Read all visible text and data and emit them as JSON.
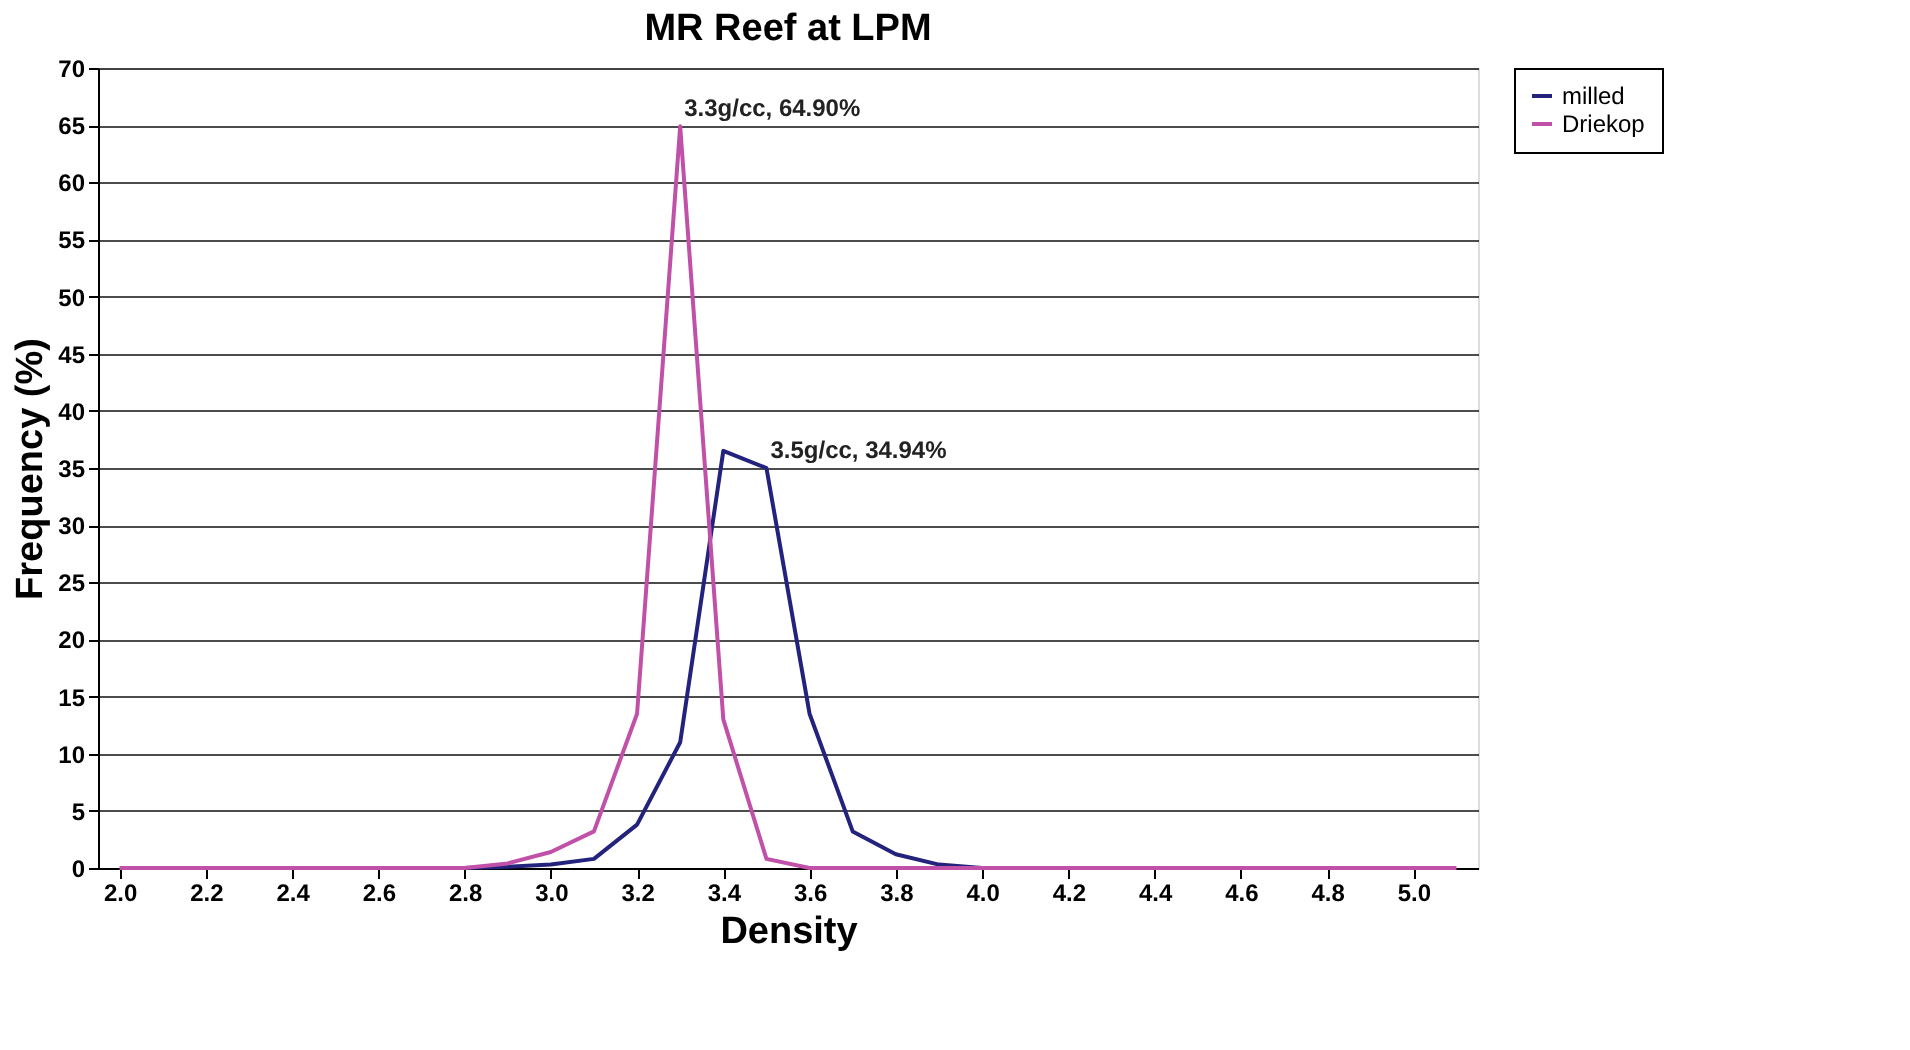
{
  "chart_data": {
    "type": "line",
    "title": "MR Reef at LPM",
    "xlabel": "Density",
    "ylabel": "Frequency (%)",
    "x": [
      2.0,
      2.1,
      2.2,
      2.3,
      2.4,
      2.5,
      2.6,
      2.7,
      2.8,
      2.9,
      3.0,
      3.1,
      3.2,
      3.3,
      3.4,
      3.5,
      3.6,
      3.7,
      3.8,
      3.9,
      4.0,
      4.1,
      4.2,
      4.3,
      4.4,
      4.5,
      4.6,
      4.7,
      4.8,
      4.9,
      5.0,
      5.1
    ],
    "series": [
      {
        "name": "milled",
        "color": "#23237e",
        "values": [
          null,
          null,
          null,
          null,
          null,
          null,
          null,
          null,
          0,
          0.1,
          0.3,
          0.8,
          3.8,
          11,
          36.5,
          35,
          13.5,
          3.2,
          1.2,
          0.3,
          0,
          null,
          null,
          null,
          null,
          null,
          null,
          null,
          null,
          null,
          null,
          null
        ]
      },
      {
        "name": "Driekop",
        "color": "#c050a8",
        "values": [
          0,
          0,
          0,
          0,
          0,
          0,
          0,
          0,
          0,
          0.4,
          1.4,
          3.2,
          13.5,
          64.9,
          13,
          0.8,
          0,
          0,
          0,
          0,
          0,
          0,
          0,
          0,
          0,
          0,
          0,
          0,
          0,
          0,
          0,
          0
        ]
      }
    ],
    "annotations": [
      {
        "text": "3.3g/cc, 64.90%",
        "x": 3.3,
        "y": 64.9
      },
      {
        "text": "3.5g/cc, 34.94%",
        "x": 3.5,
        "y": 35
      }
    ],
    "xlim": [
      1.95,
      5.15
    ],
    "xticks": [
      {
        "value": 2.0,
        "label": "2.0"
      },
      2.2,
      2.4,
      2.6,
      2.8,
      {
        "value": 3.0,
        "label": "3.0"
      },
      3.2,
      3.4,
      3.6,
      3.8,
      {
        "value": 4.0,
        "label": "4.0"
      },
      4.2,
      4.4,
      4.6,
      4.8,
      {
        "value": 5.0,
        "label": "5.0"
      }
    ],
    "ylim": [
      0,
      70
    ],
    "yticks": [
      0,
      5,
      10,
      15,
      20,
      25,
      30,
      35,
      40,
      45,
      50,
      55,
      60,
      65,
      70
    ],
    "grid": "y",
    "legend": "right",
    "marker": "none",
    "line_style": "solid"
  }
}
